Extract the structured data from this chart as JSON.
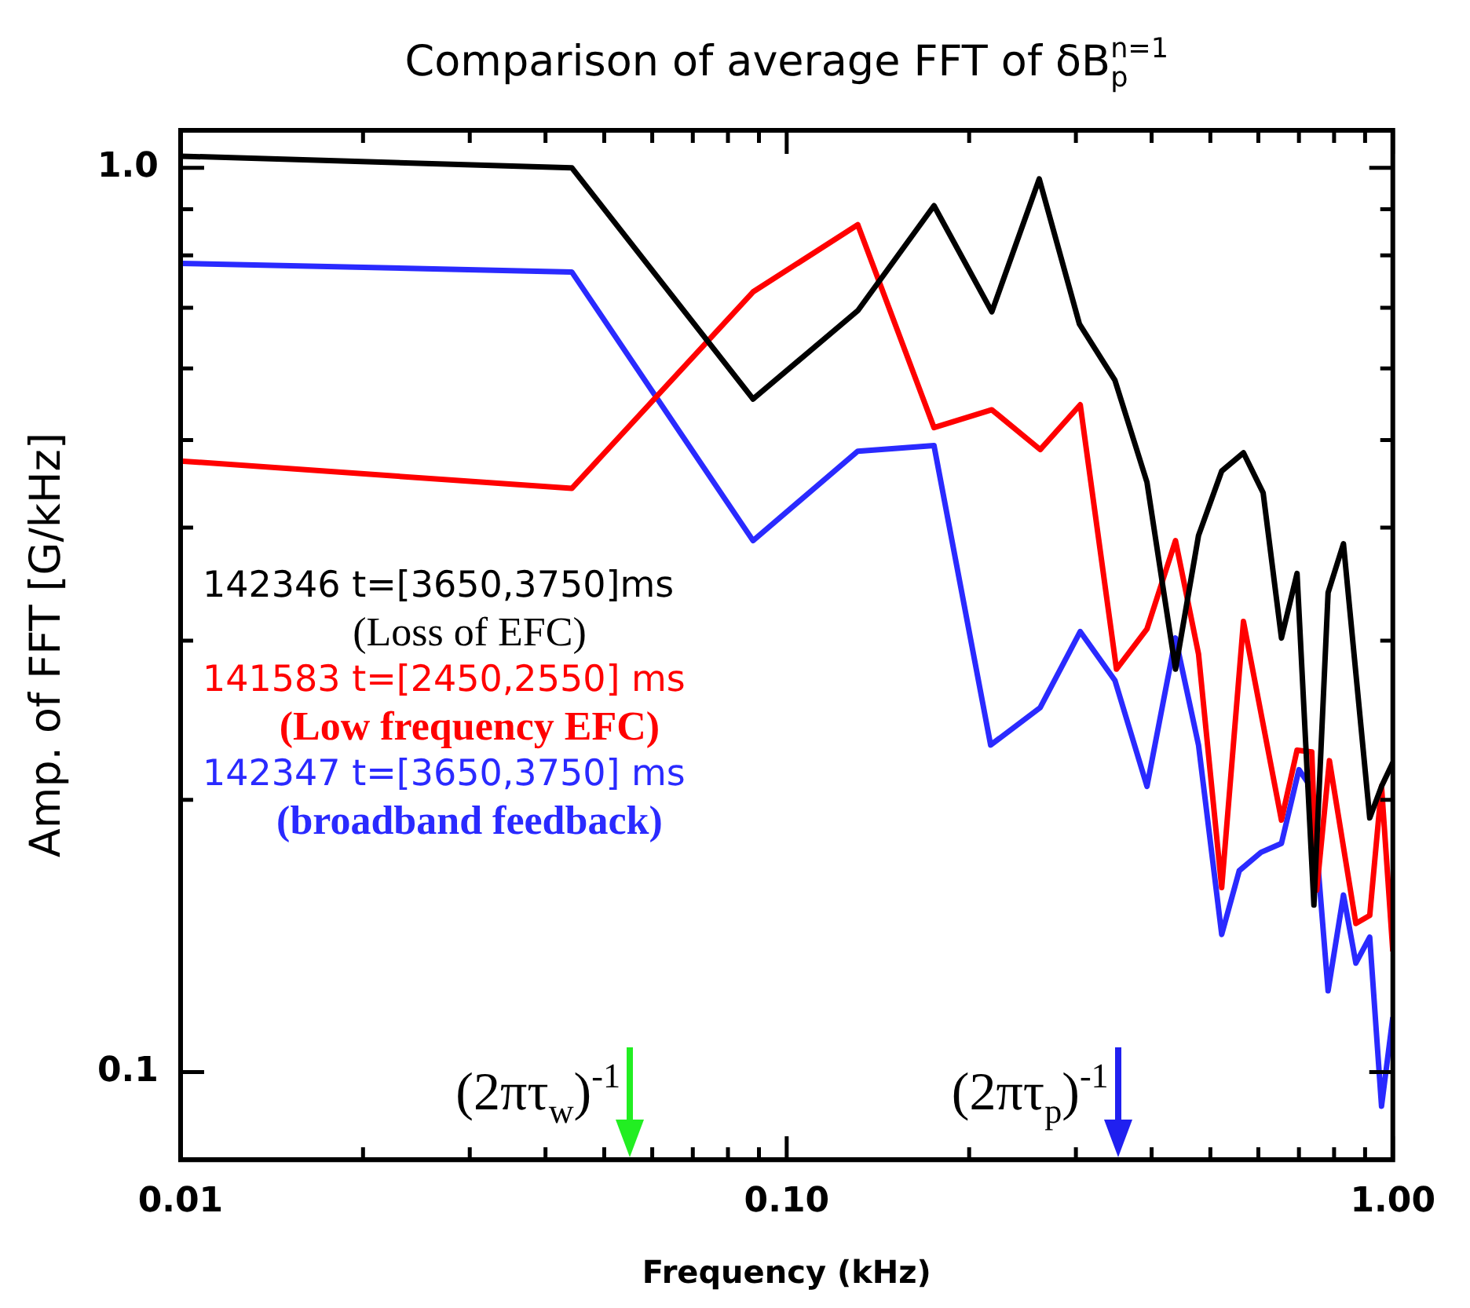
{
  "chart_data": {
    "type": "line",
    "title": "Comparison of average FFT of δB$_{p}$$^{n=1}$",
    "xlabel": "Frequency (kHz)",
    "ylabel": "Amp. of FFT [G/kHz]",
    "log": "xy",
    "grid": false,
    "legend": "left",
    "marker": "none",
    "xlim": [
      0.01,
      1.0
    ],
    "ylim": [
      0.08,
      1.1
    ],
    "xticks": [
      {
        "value": 0.01,
        "label": "0.01"
      },
      {
        "value": 0.02,
        "label": null
      },
      {
        "value": 0.03,
        "label": null
      },
      {
        "value": 0.04,
        "label": null
      },
      {
        "value": 0.05,
        "label": null
      },
      {
        "value": 0.06,
        "label": null
      },
      {
        "value": 0.07,
        "label": null
      },
      {
        "value": 0.08,
        "label": null
      },
      {
        "value": 0.09,
        "label": null
      },
      {
        "value": 0.1,
        "label": "0.10"
      },
      {
        "value": 0.2,
        "label": null
      },
      {
        "value": 0.3,
        "label": null
      },
      {
        "value": 0.4,
        "label": null
      },
      {
        "value": 0.5,
        "label": null
      },
      {
        "value": 0.6,
        "label": null
      },
      {
        "value": 0.7,
        "label": null
      },
      {
        "value": 0.8,
        "label": null
      },
      {
        "value": 0.9,
        "label": null
      },
      {
        "value": 1.0,
        "label": "1.00"
      }
    ],
    "yticks": [
      0.1,
      {
        "value": 0.2,
        "label": null
      },
      {
        "value": 0.3,
        "label": null
      },
      {
        "value": 0.4,
        "label": null
      },
      {
        "value": 0.5,
        "label": null
      },
      {
        "value": 0.6,
        "label": null
      },
      {
        "value": 0.7,
        "label": null
      },
      {
        "value": 0.8,
        "label": null
      },
      {
        "value": 0.9,
        "label": null
      },
      {
        "value": 1.0,
        "label": "1.0"
      }
    ],
    "series": [
      {
        "name": "142346 t=[3650,3750]ms\n(Loss of EFC)",
        "color": "#000000",
        "x": [
          0.01,
          0.0442,
          0.088,
          0.131,
          0.175,
          0.218,
          0.261,
          0.304,
          0.348,
          0.393,
          0.438,
          0.478,
          0.522,
          0.567,
          0.611,
          0.655,
          0.695,
          0.741,
          0.782,
          0.829,
          0.916,
          0.958,
          1.0
        ],
        "values": [
          1.03,
          1.0,
          0.555,
          0.695,
          0.908,
          0.693,
          0.972,
          0.672,
          0.582,
          0.449,
          0.279,
          0.392,
          0.462,
          0.484,
          0.437,
          0.302,
          0.356,
          0.153,
          0.339,
          0.384,
          0.191,
          0.207,
          0.22
        ]
      },
      {
        "name": "141583 t=[2450,2550] ms\n(Low frequency EFC)",
        "color": "#ff0000",
        "x": [
          0.01,
          0.0442,
          0.088,
          0.131,
          0.175,
          0.218,
          0.262,
          0.305,
          0.35,
          0.393,
          0.438,
          0.478,
          0.522,
          0.567,
          0.655,
          0.695,
          0.735,
          0.749,
          0.786,
          0.869,
          0.916,
          0.958,
          1.0
        ],
        "values": [
          0.474,
          0.442,
          0.729,
          0.865,
          0.516,
          0.54,
          0.488,
          0.547,
          0.279,
          0.309,
          0.387,
          0.29,
          0.16,
          0.315,
          0.19,
          0.227,
          0.226,
          0.159,
          0.221,
          0.146,
          0.149,
          0.207,
          0.136
        ]
      },
      {
        "name": "142347 t=[3650,3750] ms\n(broadband feedback)",
        "color": "#2a2aff",
        "x": [
          0.01,
          0.0442,
          0.088,
          0.131,
          0.175,
          0.217,
          0.262,
          0.305,
          0.348,
          0.393,
          0.438,
          0.478,
          0.522,
          0.558,
          0.606,
          0.655,
          0.7,
          0.735,
          0.782,
          0.829,
          0.869,
          0.916,
          0.958,
          1.0
        ],
        "values": [
          0.784,
          0.767,
          0.387,
          0.486,
          0.493,
          0.23,
          0.253,
          0.307,
          0.271,
          0.207,
          0.302,
          0.23,
          0.142,
          0.167,
          0.175,
          0.179,
          0.216,
          0.206,
          0.123,
          0.157,
          0.132,
          0.141,
          0.0917,
          0.115
        ]
      }
    ],
    "ref_lines": [
      {
        "axis": "x",
        "value": 0.0551,
        "label": "(2πτ$_{w}$)$^{-1}$",
        "color": "#22ee22"
      },
      {
        "axis": "x",
        "value": 0.352,
        "label": "(2πτ$_{p}$)$^{-1}$",
        "color": "#2020f0"
      }
    ]
  }
}
